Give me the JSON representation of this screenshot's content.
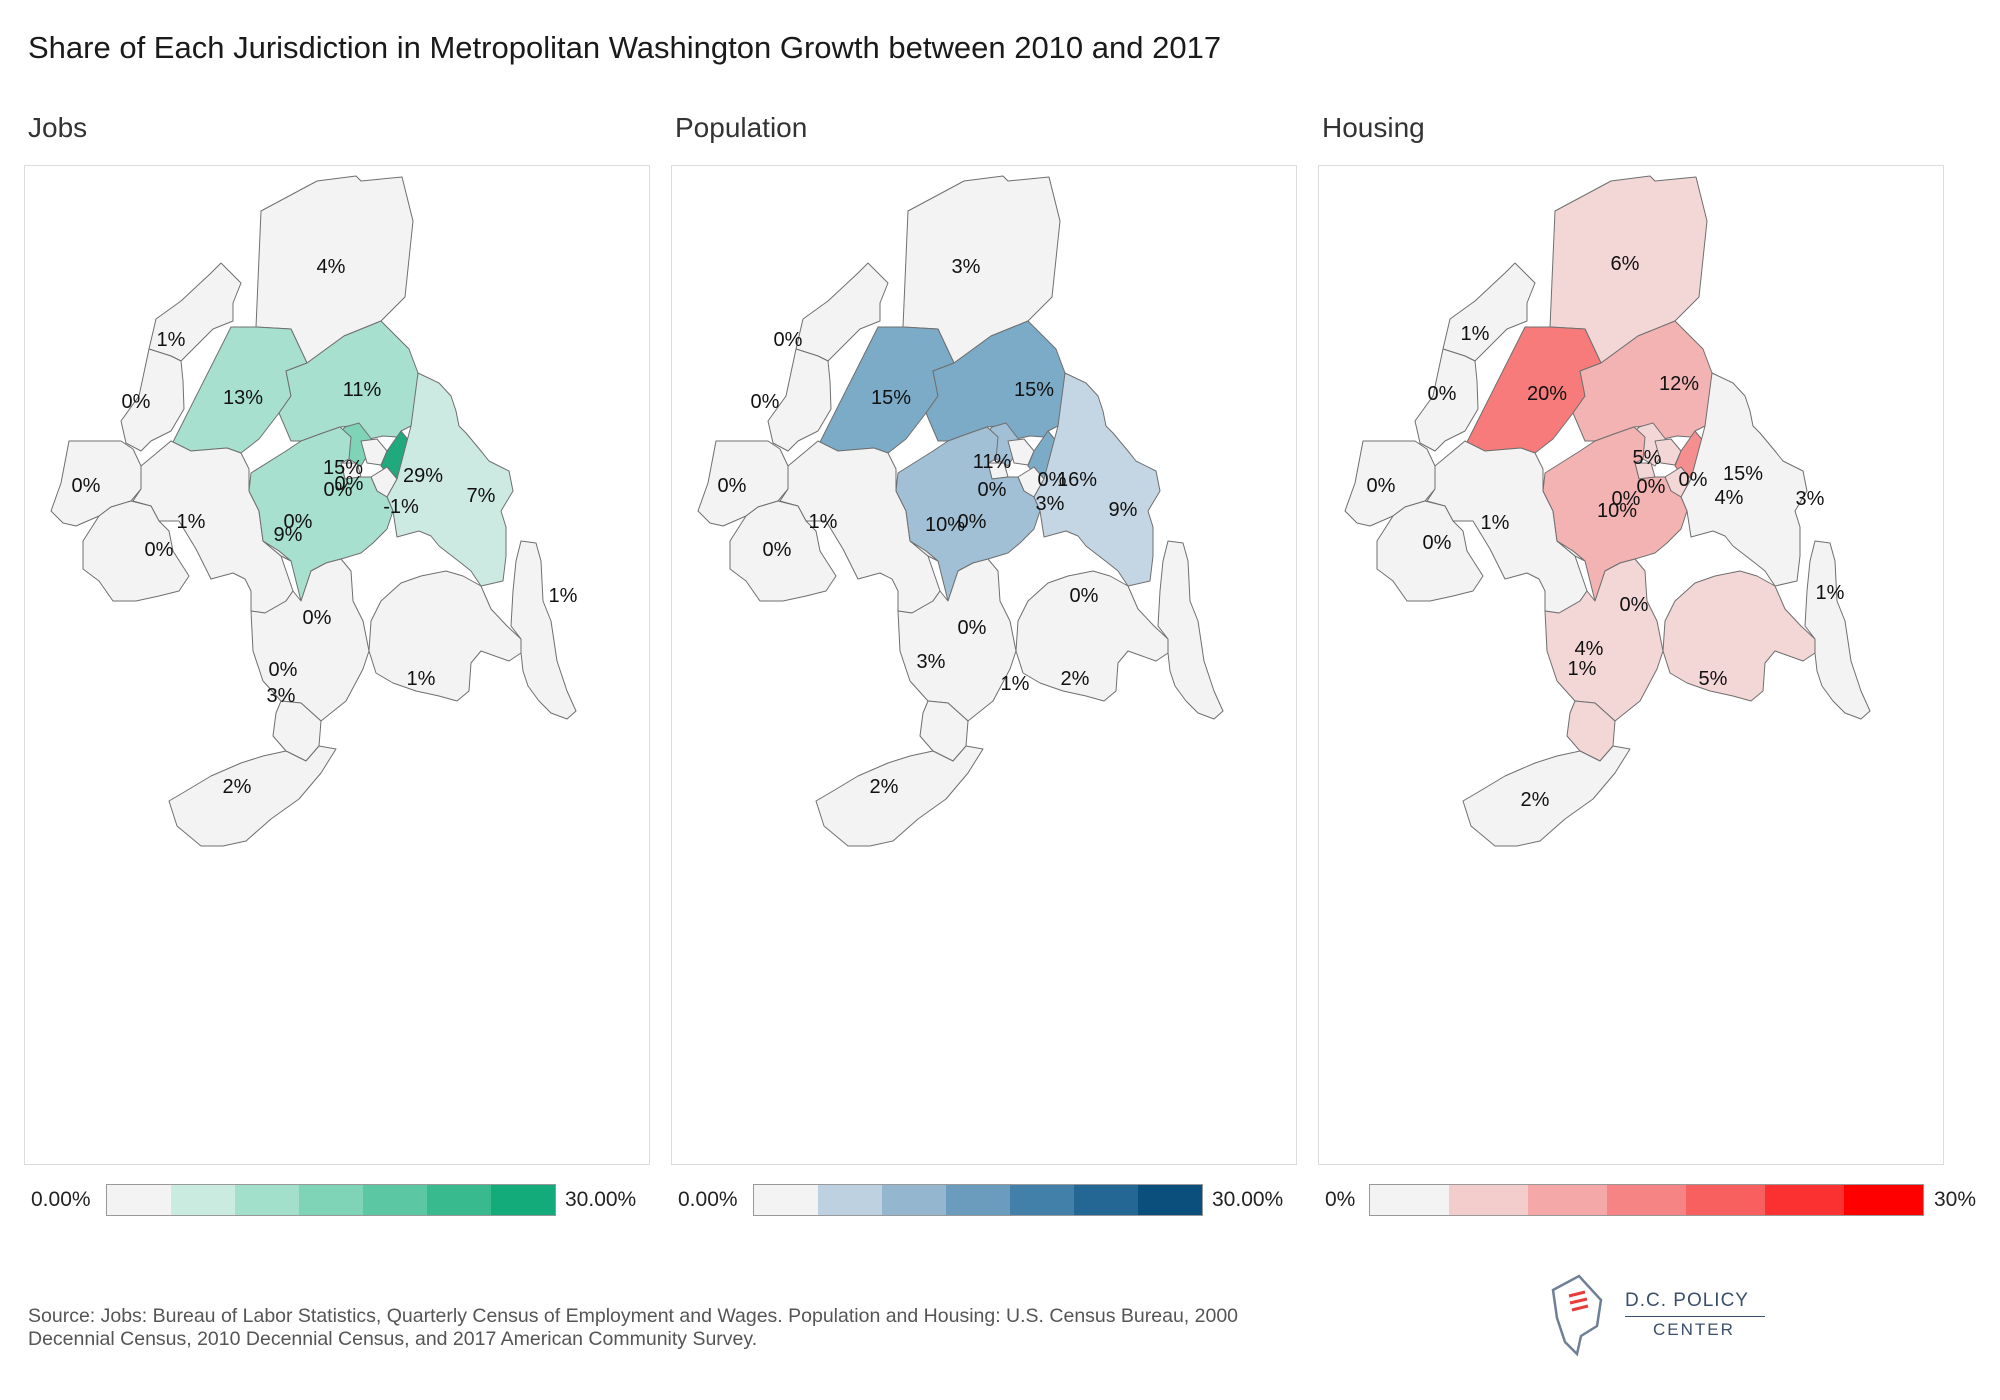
{
  "title": "Share of Each Jurisdiction in Metropolitan Washington Growth  between 2010 and 2017",
  "panels": [
    {
      "label": "Jobs",
      "scale": {
        "min_label": "0.00%",
        "max_label": "30.00%",
        "colors": [
          "#f3f3f3",
          "#c9ebe0",
          "#a3e0cc",
          "#7fd4b8",
          "#5cc7a3",
          "#38ba8e",
          "#12ab79"
        ]
      },
      "values": [
        {
          "label": "4%",
          "fill": "#f3f3f3"
        },
        {
          "label": "1%",
          "fill": "#f3f3f3"
        },
        {
          "label": "0%",
          "fill": "#f3f3f3"
        },
        {
          "label": "13%",
          "fill": "#a7e0ce"
        },
        {
          "label": "11%",
          "fill": "#a7e0ce"
        },
        {
          "label": "0%",
          "fill": "#f3f3f3"
        },
        {
          "label": "1%",
          "fill": "#f3f3f3"
        },
        {
          "label": "0%",
          "fill": "#f3f3f3"
        },
        {
          "label": "15%",
          "fill": "#7fd4b8"
        },
        {
          "label": "0%",
          "fill": "#f3f3f3"
        },
        {
          "label": "0%",
          "fill": "#f3f3f3"
        },
        {
          "label": "29%",
          "fill": "#1fa97d"
        },
        {
          "label": "-1%",
          "fill": "#f3f3f3"
        },
        {
          "label": "7%",
          "fill": "#cdeae2"
        },
        {
          "label": "0%",
          "fill": "#f3f3f3"
        },
        {
          "label": "9%",
          "fill": "#a7e0ce"
        },
        {
          "label": "0%",
          "fill": "#f3f3f3"
        },
        {
          "label": "3%",
          "fill": "#f3f3f3"
        },
        {
          "label": "0%",
          "fill": "#f3f3f3"
        },
        {
          "label": "1%",
          "fill": "#f3f3f3"
        },
        {
          "label": "1%",
          "fill": "#f3f3f3"
        },
        {
          "label": "2%",
          "fill": "#f3f3f3"
        }
      ]
    },
    {
      "label": "Population",
      "scale": {
        "min_label": "0.00%",
        "max_label": "30.00%",
        "colors": [
          "#f3f3f3",
          "#bdd1e0",
          "#94b6cf",
          "#6b9bbd",
          "#4280a9",
          "#246794",
          "#0b4f7d"
        ]
      },
      "values": [
        {
          "label": "3%",
          "fill": "#f3f3f3"
        },
        {
          "label": "0%",
          "fill": "#f3f3f3"
        },
        {
          "label": "0%",
          "fill": "#f3f3f3"
        },
        {
          "label": "15%",
          "fill": "#7babc7"
        },
        {
          "label": "15%",
          "fill": "#7babc7"
        },
        {
          "label": "0%",
          "fill": "#f3f3f3"
        },
        {
          "label": "1%",
          "fill": "#f3f3f3"
        },
        {
          "label": "0%",
          "fill": "#f3f3f3"
        },
        {
          "label": "11%",
          "fill": "#a1c0d5"
        },
        {
          "label": "0%",
          "fill": "#f3f3f3"
        },
        {
          "label": "0%",
          "fill": "#f3f3f3"
        },
        {
          "label": "16%",
          "fill": "#7babc7"
        },
        {
          "label": "3%",
          "fill": "#f3f3f3"
        },
        {
          "label": "9%",
          "fill": "#c4d6e3"
        },
        {
          "label": "0%",
          "fill": "#f3f3f3"
        },
        {
          "label": "10%",
          "fill": "#a1c0d5"
        },
        {
          "label": "0%",
          "fill": "#f3f3f3"
        },
        {
          "label": "3%",
          "fill": "#f3f3f3"
        },
        {
          "label": "1%",
          "fill": "#f3f3f3"
        },
        {
          "label": "2%",
          "fill": "#f3f3f3"
        },
        {
          "label": "0%",
          "fill": "#f3f3f3"
        },
        {
          "label": "2%",
          "fill": "#f3f3f3"
        }
      ]
    },
    {
      "label": "Housing",
      "scale": {
        "min_label": "0%",
        "max_label": "30%",
        "colors": [
          "#f3f3f3",
          "#f3cccc",
          "#f4a8a8",
          "#f68484",
          "#f85f5f",
          "#fb3030",
          "#ff0000"
        ]
      },
      "values": [
        {
          "label": "6%",
          "fill": "#f3d6d6"
        },
        {
          "label": "1%",
          "fill": "#f3f3f3"
        },
        {
          "label": "0%",
          "fill": "#f3f3f3"
        },
        {
          "label": "20%",
          "fill": "#f77b7b"
        },
        {
          "label": "12%",
          "fill": "#f4b3b3"
        },
        {
          "label": "0%",
          "fill": "#f3f3f3"
        },
        {
          "label": "1%",
          "fill": "#f3f3f3"
        },
        {
          "label": "0%",
          "fill": "#f3f3f3"
        },
        {
          "label": "5%",
          "fill": "#f3d6d6"
        },
        {
          "label": "0%",
          "fill": "#f3d6d6"
        },
        {
          "label": "0%",
          "fill": "#f3d6d6"
        },
        {
          "label": "15%",
          "fill": "#f58e8e"
        },
        {
          "label": "4%",
          "fill": "#f3d6d6"
        },
        {
          "label": "3%",
          "fill": "#f3f3f3"
        },
        {
          "label": "0%",
          "fill": "#f3f3f3"
        },
        {
          "label": "10%",
          "fill": "#f4b3b3"
        },
        {
          "label": "0%",
          "fill": "#f3f3f3"
        },
        {
          "label": "4%",
          "fill": "#f3d6d6"
        },
        {
          "label": "1%",
          "fill": "#f3d6d6"
        },
        {
          "label": "5%",
          "fill": "#f3d6d6"
        },
        {
          "label": "1%",
          "fill": "#f3f3f3"
        },
        {
          "label": "2%",
          "fill": "#f3f3f3"
        }
      ]
    }
  ],
  "source": "Source: Jobs: Bureau of Labor Statistics, Quarterly Census of Employment and Wages. Population and Housing: U.S. Census Bureau, 2000 Decennial Census, 2010 Decennial Census, and 2017 American Community Survey.",
  "logo": {
    "line1": "D.C. POLICY",
    "line2": "CENTER",
    "icon": "dc-map-icon"
  }
}
